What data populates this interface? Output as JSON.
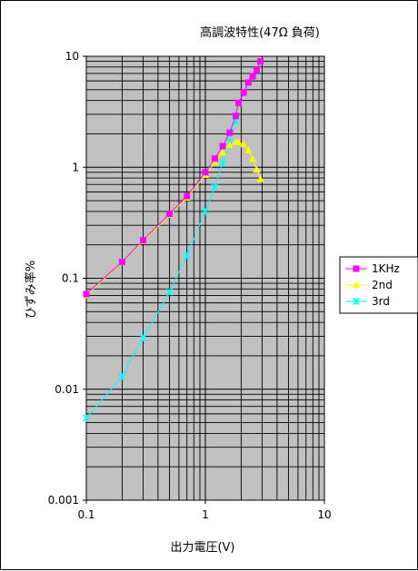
{
  "chart_data": {
    "type": "line",
    "title": "高調波特性(47Ω 負荷)",
    "xlabel": "出力電圧(V)",
    "ylabel": "ひずみ率%",
    "x_scale": "log",
    "y_scale": "log",
    "xlim": [
      0.1,
      10
    ],
    "ylim": [
      0.001,
      10
    ],
    "x_tick_labels": [
      "0.1",
      "1",
      "10"
    ],
    "y_tick_labels": [
      "0.001",
      "0.01",
      "0.1",
      "1",
      "10"
    ],
    "plot_background": "#c0c0c0",
    "grid": true,
    "legend_position": "right",
    "series": [
      {
        "name": "1KHz",
        "color": "#ff00ff",
        "marker": "square",
        "x": [
          0.1,
          0.2,
          0.3,
          0.5,
          0.7,
          1.0,
          1.2,
          1.4,
          1.6,
          1.8,
          1.9,
          2.1,
          2.3,
          2.5,
          2.7,
          2.9
        ],
        "y": [
          0.072,
          0.14,
          0.22,
          0.38,
          0.55,
          0.9,
          1.2,
          1.55,
          2.05,
          2.9,
          3.8,
          4.7,
          5.8,
          6.6,
          7.5,
          9.0
        ]
      },
      {
        "name": "2nd",
        "color": "#ffff00",
        "marker": "triangle",
        "x": [
          0.1,
          0.2,
          0.3,
          0.5,
          0.7,
          1.0,
          1.2,
          1.4,
          1.6,
          1.8,
          1.9,
          2.1,
          2.3,
          2.5,
          2.7,
          2.9
        ],
        "y": [
          0.07,
          0.138,
          0.215,
          0.37,
          0.53,
          0.85,
          1.1,
          1.35,
          1.58,
          1.68,
          1.68,
          1.6,
          1.42,
          1.18,
          0.95,
          0.78
        ]
      },
      {
        "name": "3rd",
        "color": "#00ffff",
        "marker": "asterisk",
        "x": [
          0.1,
          0.2,
          0.3,
          0.5,
          0.7,
          1.0,
          1.2,
          1.4,
          1.6,
          1.8
        ],
        "y": [
          0.0055,
          0.013,
          0.029,
          0.075,
          0.16,
          0.4,
          0.66,
          1.1,
          1.7,
          2.6
        ]
      }
    ]
  }
}
